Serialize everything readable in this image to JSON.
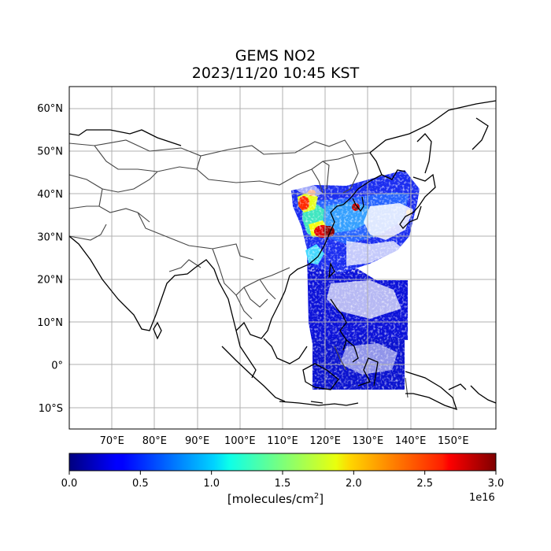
{
  "title": "GEMS NO2",
  "subtitle": "2023/11/20 10:45 KST",
  "map": {
    "lon_range": [
      60,
      160
    ],
    "lat_range": [
      -15,
      65
    ],
    "lon_ticks": [
      "70°E",
      "80°E",
      "90°E",
      "100°E",
      "110°E",
      "120°E",
      "130°E",
      "140°E",
      "150°E"
    ],
    "lat_ticks": [
      "60°N",
      "50°N",
      "40°N",
      "30°N",
      "20°N",
      "10°N",
      "0°",
      "10°S"
    ],
    "grid": true,
    "colors": {
      "coast": "#000000",
      "border": "#444444",
      "grid": "#b0b0b0",
      "low_value": "#0000c8",
      "high_value": "#800000"
    }
  },
  "colorbar": {
    "colormap": "jet",
    "range": [
      0.0,
      3.0
    ],
    "ticks": [
      "0.0",
      "0.5",
      "1.0",
      "1.5",
      "2.0",
      "2.5",
      "3.0"
    ],
    "label_text": "[molecules/cm",
    "label_sup": "2",
    "label_end": "]",
    "exponent": "1e16"
  }
}
